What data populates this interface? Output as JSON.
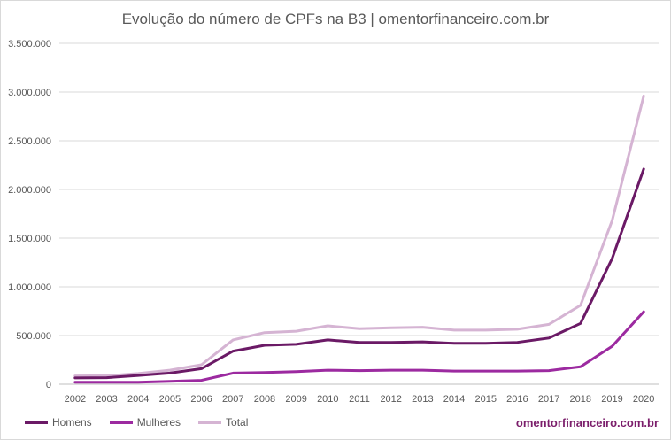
{
  "chart_data": {
    "type": "line",
    "title": "Evolução do número de CPFs na B3 | omentorfinanceiro.com.br",
    "x": [
      "2002",
      "2003",
      "2004",
      "2005",
      "2006",
      "2007",
      "2008",
      "2009",
      "2010",
      "2011",
      "2012",
      "2013",
      "2014",
      "2015",
      "2016",
      "2017",
      "2018",
      "2019",
      "2020"
    ],
    "y_ticks": [
      "0",
      "500.000",
      "1.000.000",
      "1.500.000",
      "2.000.000",
      "2.500.000",
      "3.000.000",
      "3.500.000"
    ],
    "ylim": [
      0,
      3500000
    ],
    "grid": true,
    "legend_placement": "bottom-left",
    "series": [
      {
        "name": "Homens",
        "color": "#6b1a66",
        "values": [
          65000,
          67000,
          90000,
          115000,
          160000,
          340000,
          400000,
          410000,
          455000,
          430000,
          430000,
          435000,
          420000,
          420000,
          430000,
          475000,
          625000,
          1290000,
          2210000
        ]
      },
      {
        "name": "Mulheres",
        "color": "#9c2aa0",
        "values": [
          20000,
          20000,
          20000,
          30000,
          40000,
          115000,
          120000,
          130000,
          145000,
          140000,
          145000,
          145000,
          135000,
          135000,
          135000,
          140000,
          180000,
          390000,
          745000
        ]
      },
      {
        "name": "Total",
        "color": "#d5b4d3",
        "values": [
          85000,
          87000,
          110000,
          145000,
          200000,
          455000,
          530000,
          545000,
          600000,
          570000,
          580000,
          585000,
          555000,
          555000,
          565000,
          615000,
          810000,
          1680000,
          2960000
        ]
      }
    ]
  },
  "source_label": "omentorfinanceiro.com.br"
}
